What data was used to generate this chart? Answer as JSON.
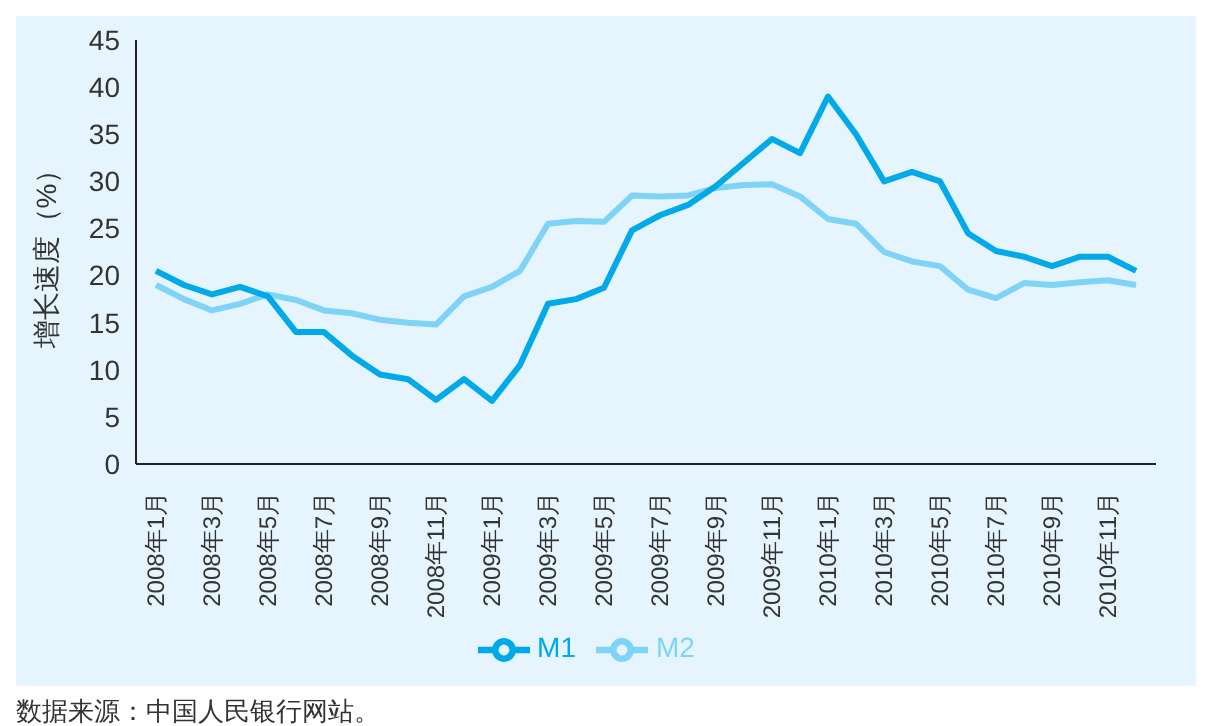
{
  "chart_data": {
    "type": "line",
    "ylabel": "增长速度（%）",
    "categories": [
      "2008年1月",
      null,
      "2008年3月",
      null,
      "2008年5月",
      null,
      "2008年7月",
      null,
      "2008年9月",
      null,
      "2008年11月",
      null,
      "2009年1月",
      null,
      "2009年3月",
      null,
      "2009年5月",
      null,
      "2009年7月",
      null,
      "2009年9月",
      null,
      "2009年11月",
      null,
      "2010年1月",
      null,
      "2010年3月",
      null,
      "2010年5月",
      null,
      "2010年7月",
      null,
      "2010年9月",
      null,
      "2010年11月",
      null
    ],
    "series": [
      {
        "name": "M2",
        "color": "#7fd3f7",
        "values": [
          19,
          17.5,
          16.3,
          17,
          18,
          17.4,
          16.3,
          16,
          15.3,
          15,
          14.8,
          17.8,
          18.8,
          20.5,
          25.5,
          25.8,
          25.7,
          28.5,
          28.4,
          28.5,
          29.3,
          29.6,
          29.7,
          28.4,
          26,
          25.5,
          22.5,
          21.5,
          21,
          18.5,
          17.6,
          19.2,
          19,
          19.3,
          19.5,
          19
        ]
      },
      {
        "name": "M1",
        "color": "#00a9e8",
        "values": [
          20.5,
          19,
          18,
          18.8,
          17.8,
          14,
          14,
          11.5,
          9.5,
          9,
          6.8,
          9,
          6.7,
          10.5,
          17,
          17.5,
          18.7,
          24.8,
          26.4,
          27.5,
          29.5,
          32,
          34.5,
          33,
          39,
          35,
          30,
          31,
          30,
          24.5,
          22.6,
          22,
          21,
          22,
          22,
          20.5
        ]
      }
    ],
    "ylim": [
      0,
      45
    ],
    "yticks": [
      0,
      5,
      10,
      15,
      20,
      25,
      30,
      35,
      40,
      45
    ],
    "grid": false,
    "legend": "bottom",
    "marker": "none",
    "line_style": "solid",
    "annotations": [
      "数据来源：中国人民银行网站。"
    ]
  }
}
